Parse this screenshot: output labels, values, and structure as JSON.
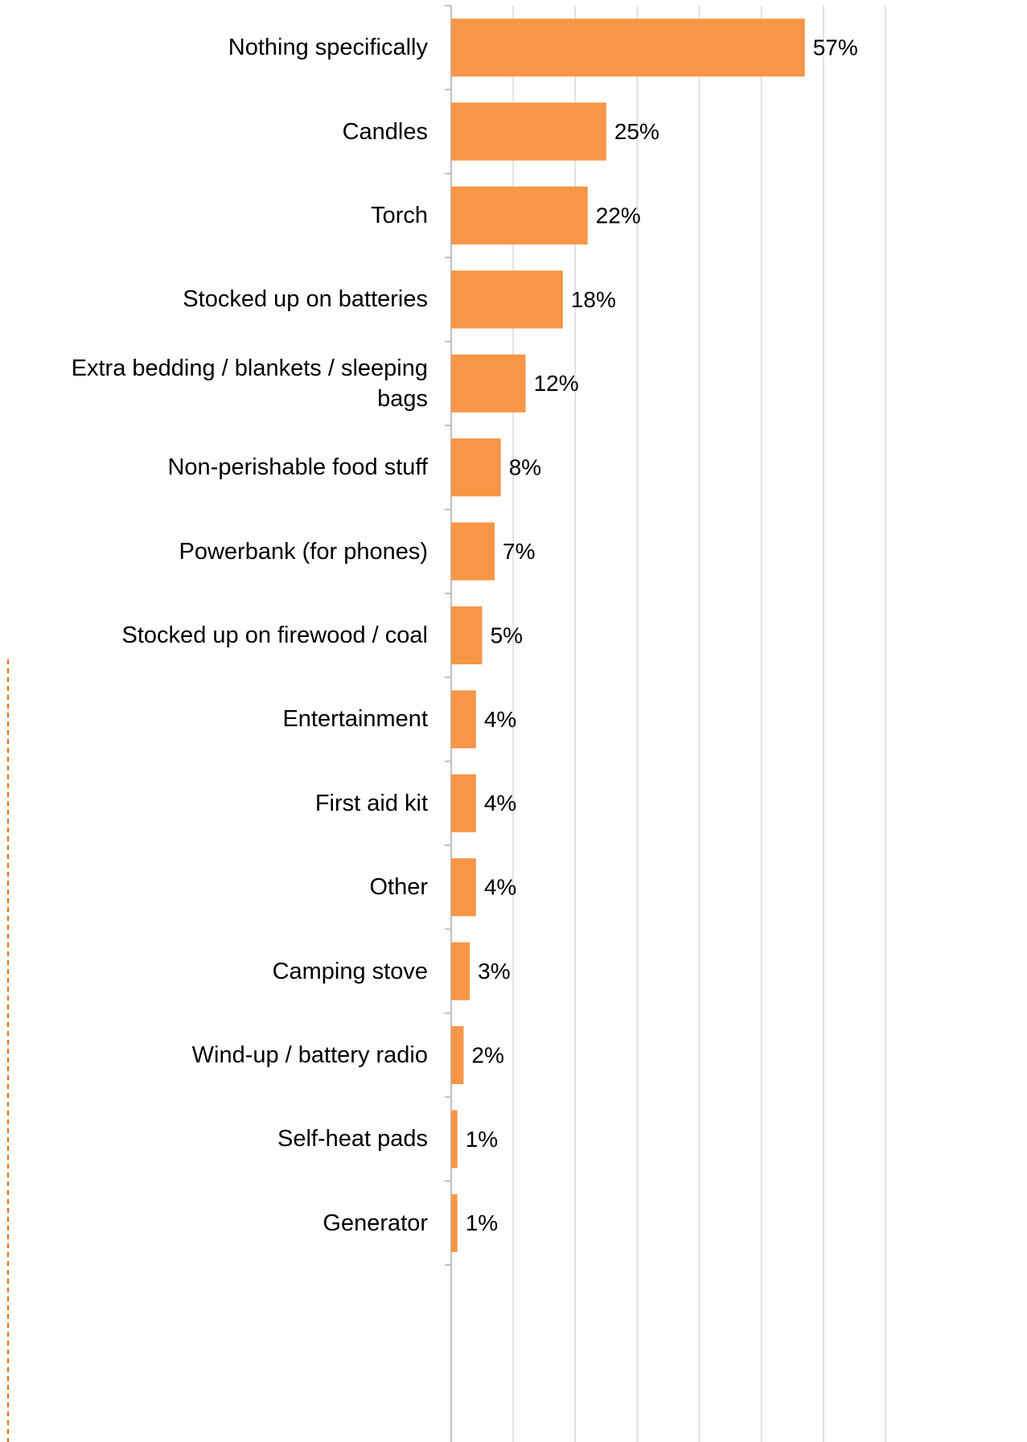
{
  "chart_data": {
    "type": "bar",
    "orientation": "horizontal",
    "categories": [
      "Nothing specifically",
      "Candles",
      "Torch",
      "Stocked up on batteries",
      "Extra bedding / blankets / sleeping bags",
      "Non-perishable food stuff",
      "Powerbank (for phones)",
      "Stocked up on firewood / coal",
      "Entertainment",
      "First aid kit",
      "Other",
      "Camping stove",
      "Wind-up / battery radio",
      "Self-heat pads",
      "Generator"
    ],
    "values": [
      57,
      25,
      22,
      18,
      12,
      8,
      7,
      5,
      4,
      4,
      4,
      3,
      2,
      1,
      1
    ],
    "value_labels": [
      "57%",
      "25%",
      "22%",
      "18%",
      "12%",
      "8%",
      "7%",
      "5%",
      "4%",
      "4%",
      "4%",
      "3%",
      "2%",
      "1%",
      "1%"
    ],
    "color": "#f79646",
    "xlim": [
      0,
      70
    ],
    "xticks": [
      0,
      10,
      20,
      30,
      40,
      50,
      60,
      70
    ],
    "grid": true
  }
}
